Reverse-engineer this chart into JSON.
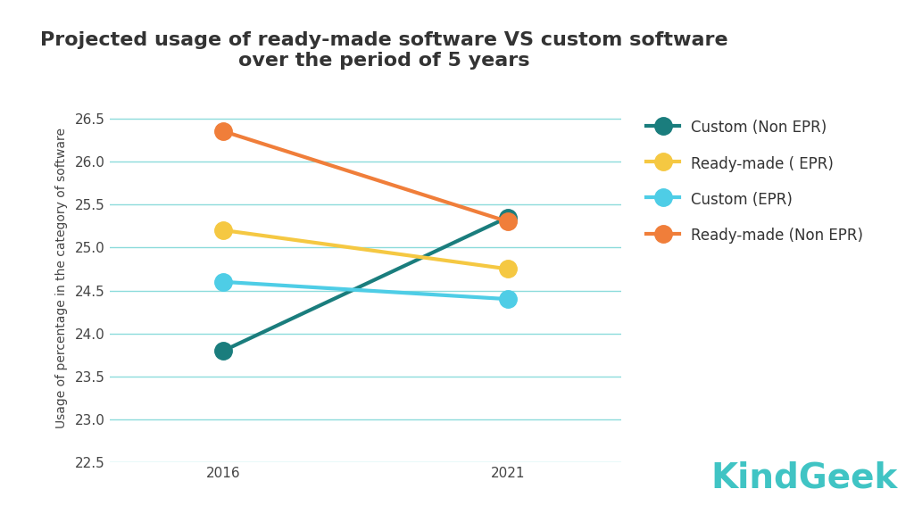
{
  "title_line1": "Projected usage of ready-made software VS custom software",
  "title_line2": "over the period of 5 years",
  "ylabel": "Usage of percentage in the category of software",
  "years": [
    2016,
    2021
  ],
  "series": [
    {
      "label": "Custom (Non EPR)",
      "color": "#1a7d7d",
      "values": [
        23.8,
        25.35
      ]
    },
    {
      "label": "Ready-made ( EPR)",
      "color": "#f5c842",
      "values": [
        25.2,
        24.75
      ]
    },
    {
      "label": "Custom (EPR)",
      "color": "#4ecde6",
      "values": [
        24.6,
        24.4
      ]
    },
    {
      "label": "Ready-made (Non EPR)",
      "color": "#f07e3a",
      "values": [
        26.35,
        25.3
      ]
    }
  ],
  "ylim": [
    22.5,
    26.8
  ],
  "yticks": [
    22.5,
    23.0,
    23.5,
    24.0,
    24.5,
    25.0,
    25.5,
    26.0,
    26.5
  ],
  "xlim": [
    2014.0,
    2023.0
  ],
  "background_color": "#ffffff",
  "grid_color": "#40c4c4",
  "title_fontsize": 16,
  "axis_label_fontsize": 10,
  "tick_fontsize": 11,
  "legend_fontsize": 12,
  "marker_size": 14,
  "line_width": 3.0,
  "kindgeek_text": "KindGeek",
  "kindgeek_color": "#40c4c4",
  "kindgeek_fontsize": 28
}
